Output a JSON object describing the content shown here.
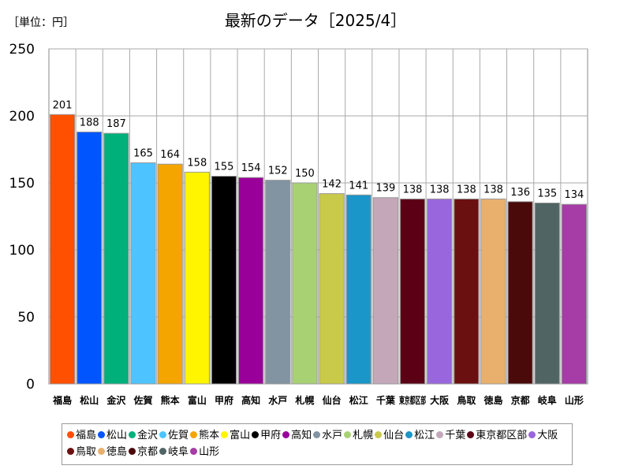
{
  "unit_label": "［単位：円］",
  "chart_data": {
    "type": "bar",
    "title": "最新のデータ［2025/4］",
    "ylim": [
      0,
      250
    ],
    "yticks": [
      0,
      50,
      100,
      150,
      200,
      250
    ],
    "grid": true,
    "legend_position": "bottom",
    "categories": [
      "福島",
      "松山",
      "金沢",
      "佐賀",
      "熊本",
      "富山",
      "甲府",
      "高知",
      "水戸",
      "札幌",
      "仙台",
      "松江",
      "千葉",
      "東京都区部",
      "大阪",
      "鳥取",
      "徳島",
      "京都",
      "岐阜",
      "山形"
    ],
    "values": [
      201,
      188,
      187,
      165,
      164,
      158,
      155,
      154,
      152,
      150,
      142,
      141,
      139,
      138,
      138,
      138,
      138,
      136,
      135,
      134
    ],
    "colors": [
      "#ff4f00",
      "#0055ff",
      "#00b07a",
      "#4dc4ff",
      "#f5a500",
      "#fff500",
      "#000000",
      "#990099",
      "#8294a2",
      "#a8d174",
      "#c9c94a",
      "#1a96c8",
      "#c4a8ba",
      "#5c0016",
      "#9966dd",
      "#6b1010",
      "#e8b06c",
      "#4a0a0a",
      "#506464",
      "#a63ca6"
    ]
  }
}
